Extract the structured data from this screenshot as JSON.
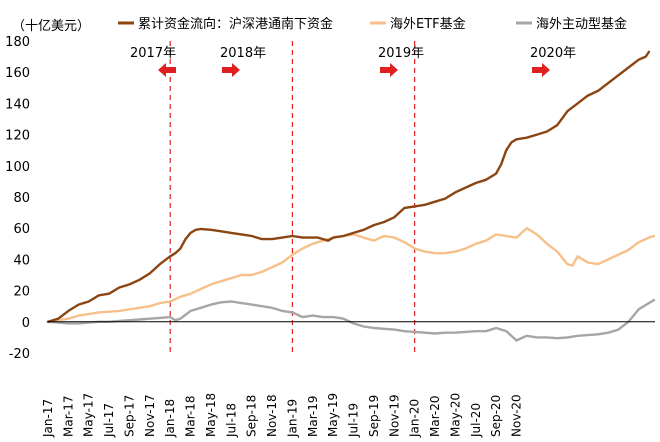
{
  "chart_data": {
    "type": "line",
    "ylabel": "（十亿美元）",
    "ylim": [
      -20,
      180
    ],
    "yticks": [
      "180",
      "160",
      "140",
      "120",
      "100",
      "80",
      "60",
      "40",
      "20",
      "0",
      "-20"
    ],
    "ytick_values": [
      180,
      160,
      140,
      120,
      100,
      80,
      60,
      40,
      20,
      0,
      -20
    ],
    "x_labels": [
      "Jan-17",
      "Mar-17",
      "May-17",
      "Jul-17",
      "Sep-17",
      "Nov-17",
      "Jan-18",
      "Mar-18",
      "May-18",
      "Jul-18",
      "Sep-18",
      "Nov-18",
      "Jan-19",
      "Mar-19",
      "May-19",
      "Jul-19",
      "Sep-19",
      "Nov-19",
      "Jan-20",
      "Mar-20",
      "May-20",
      "Jul-20",
      "Sep-20",
      "Nov-20"
    ],
    "x_range": [
      "Jan-17",
      "Dec-20"
    ],
    "grid": false,
    "legend_position": "top",
    "year_dividers": [
      "Jan-18",
      "Jan-19",
      "Jan-20"
    ],
    "year_labels": [
      "2017年",
      "2018年",
      "2019年",
      "2020年"
    ],
    "series": [
      {
        "name": "累计资金流向：沪深港通南下资金",
        "color": "#8B4513",
        "points": [
          [
            0,
            0
          ],
          [
            1,
            2
          ],
          [
            2,
            7
          ],
          [
            3,
            11
          ],
          [
            4,
            13
          ],
          [
            5,
            17
          ],
          [
            6,
            18
          ],
          [
            7,
            22
          ],
          [
            8,
            24
          ],
          [
            9,
            27
          ],
          [
            10,
            31
          ],
          [
            11,
            37
          ],
          [
            12,
            42
          ],
          [
            12.5,
            44
          ],
          [
            13,
            47
          ],
          [
            13.5,
            53
          ],
          [
            14,
            57
          ],
          [
            14.5,
            59
          ],
          [
            15,
            59.5
          ],
          [
            16,
            59
          ],
          [
            17,
            58
          ],
          [
            18,
            57
          ],
          [
            19,
            56
          ],
          [
            20,
            55
          ],
          [
            21,
            53
          ],
          [
            22,
            53
          ],
          [
            23,
            54
          ],
          [
            24,
            55
          ],
          [
            25,
            54
          ],
          [
            26,
            54
          ],
          [
            26.5,
            54
          ],
          [
            27,
            53
          ],
          [
            27.5,
            52
          ],
          [
            28,
            54
          ],
          [
            29,
            55
          ],
          [
            30,
            57
          ],
          [
            31,
            59
          ],
          [
            32,
            62
          ],
          [
            33,
            64
          ],
          [
            34,
            67
          ],
          [
            35,
            73
          ],
          [
            36,
            74
          ],
          [
            37,
            75
          ],
          [
            38,
            77
          ],
          [
            39,
            79
          ],
          [
            40,
            83
          ],
          [
            41,
            86
          ],
          [
            42,
            89
          ],
          [
            43,
            91
          ],
          [
            44,
            95
          ],
          [
            44.5,
            101
          ],
          [
            45,
            110
          ],
          [
            45.5,
            115
          ],
          [
            46,
            117
          ],
          [
            47,
            118
          ],
          [
            48,
            120
          ],
          [
            49,
            122
          ],
          [
            50,
            126
          ],
          [
            51,
            135
          ],
          [
            52,
            140
          ],
          [
            53,
            145
          ],
          [
            54,
            148
          ],
          [
            55,
            153
          ],
          [
            56,
            158
          ],
          [
            57,
            163
          ],
          [
            58,
            168
          ],
          [
            58.7,
            170
          ],
          [
            59,
            173
          ]
        ]
      },
      {
        "name": "海外ETF基金",
        "color": "#F7C08A",
        "points": [
          [
            0,
            0
          ],
          [
            1,
            1
          ],
          [
            2,
            2
          ],
          [
            3,
            4
          ],
          [
            4,
            5
          ],
          [
            5,
            6
          ],
          [
            6,
            6.5
          ],
          [
            7,
            7
          ],
          [
            8,
            8
          ],
          [
            9,
            9
          ],
          [
            10,
            10
          ],
          [
            11,
            12
          ],
          [
            12,
            13
          ],
          [
            13,
            16
          ],
          [
            14,
            18
          ],
          [
            15,
            21
          ],
          [
            16,
            24
          ],
          [
            17,
            26
          ],
          [
            18,
            28
          ],
          [
            19,
            30
          ],
          [
            20,
            30
          ],
          [
            21,
            32
          ],
          [
            22,
            35
          ],
          [
            23,
            38
          ],
          [
            24,
            43
          ],
          [
            25,
            47
          ],
          [
            26,
            50
          ],
          [
            27,
            52
          ],
          [
            28,
            54
          ],
          [
            29,
            55
          ],
          [
            30,
            56
          ],
          [
            31,
            54
          ],
          [
            32,
            52
          ],
          [
            33,
            55
          ],
          [
            34,
            54
          ],
          [
            35,
            51
          ],
          [
            36,
            47
          ],
          [
            37,
            45
          ],
          [
            38,
            44
          ],
          [
            39,
            44
          ],
          [
            40,
            45
          ],
          [
            41,
            47
          ],
          [
            42,
            50
          ],
          [
            43,
            52
          ],
          [
            44,
            56
          ],
          [
            45,
            55
          ],
          [
            46,
            54
          ],
          [
            47,
            60
          ],
          [
            48,
            56
          ],
          [
            49,
            50
          ],
          [
            50,
            45
          ],
          [
            51,
            37
          ],
          [
            51.5,
            36
          ],
          [
            52,
            42
          ],
          [
            53,
            38
          ],
          [
            54,
            37
          ],
          [
            55,
            40
          ],
          [
            56,
            43
          ],
          [
            57,
            46
          ],
          [
            58,
            51
          ],
          [
            59,
            54
          ],
          [
            59.5,
            55
          ]
        ]
      },
      {
        "name": "海外主动型基金",
        "color": "#A6A6A6",
        "points": [
          [
            0,
            0
          ],
          [
            1,
            -0.5
          ],
          [
            2,
            -1
          ],
          [
            3,
            -1
          ],
          [
            4,
            -0.5
          ],
          [
            5,
            0
          ],
          [
            6,
            0
          ],
          [
            7,
            0.5
          ],
          [
            8,
            1
          ],
          [
            9,
            1.5
          ],
          [
            10,
            2
          ],
          [
            11,
            2.5
          ],
          [
            12,
            3
          ],
          [
            12.5,
            1
          ],
          [
            13,
            2
          ],
          [
            14,
            7
          ],
          [
            15,
            9
          ],
          [
            16,
            11
          ],
          [
            17,
            12.5
          ],
          [
            18,
            13
          ],
          [
            19,
            12
          ],
          [
            20,
            11
          ],
          [
            21,
            10
          ],
          [
            22,
            9
          ],
          [
            23,
            7
          ],
          [
            24,
            6
          ],
          [
            25,
            3
          ],
          [
            26,
            4
          ],
          [
            27,
            3
          ],
          [
            28,
            3
          ],
          [
            29,
            2
          ],
          [
            30,
            -1
          ],
          [
            31,
            -3
          ],
          [
            32,
            -4
          ],
          [
            33,
            -4.5
          ],
          [
            34,
            -5
          ],
          [
            35,
            -6
          ],
          [
            36,
            -6.5
          ],
          [
            37,
            -7
          ],
          [
            38,
            -7.5
          ],
          [
            39,
            -7
          ],
          [
            40,
            -7
          ],
          [
            41,
            -6.5
          ],
          [
            42,
            -6
          ],
          [
            43,
            -6
          ],
          [
            44,
            -4
          ],
          [
            45,
            -6
          ],
          [
            46,
            -12
          ],
          [
            47,
            -9
          ],
          [
            48,
            -10
          ],
          [
            49,
            -10
          ],
          [
            50,
            -10.5
          ],
          [
            51,
            -10
          ],
          [
            52,
            -9
          ],
          [
            53,
            -8.5
          ],
          [
            54,
            -8
          ],
          [
            55,
            -7
          ],
          [
            56,
            -5
          ],
          [
            57,
            0
          ],
          [
            58,
            8
          ],
          [
            59,
            12
          ],
          [
            59.5,
            14
          ]
        ]
      }
    ]
  }
}
